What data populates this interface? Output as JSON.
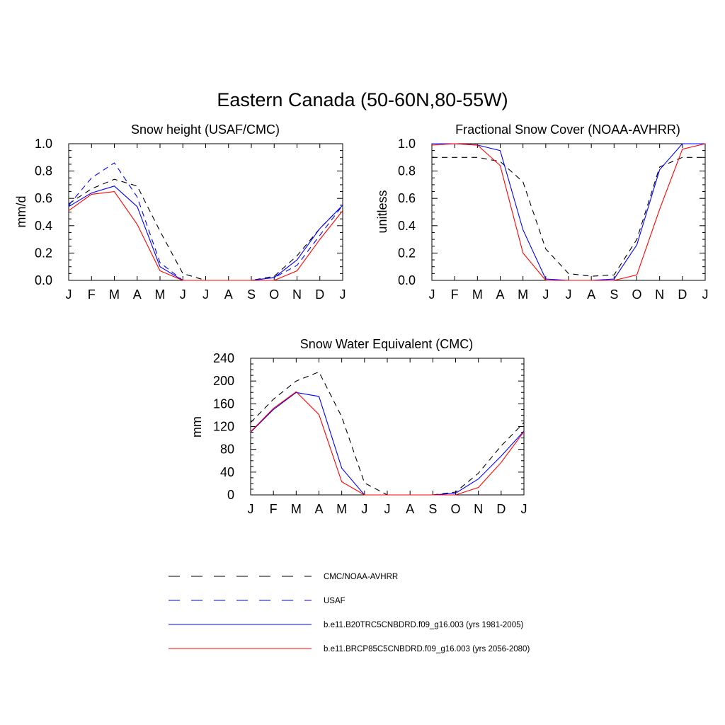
{
  "figure": {
    "title": "Eastern Canada (50-60N,80-55W)"
  },
  "legend": [
    {
      "label": "CMC/NOAA-AVHRR",
      "color": "#000000",
      "dash": true
    },
    {
      "label": "USAF",
      "color": "#0000ff",
      "dash": true
    },
    {
      "label": "b.e11.B20TRC5CNBDRD.f09_g16.003 (yrs 1981-2005)",
      "color": "#0000ff",
      "dash": false
    },
    {
      "label": "b.e11.BRCP85C5CNBDRD.f09_g16.003 (yrs 2056-2080)",
      "color": "#ff0000",
      "dash": false
    }
  ],
  "chart_data": [
    {
      "type": "line",
      "title": "Snow height (USAF/CMC)",
      "xlabel": "",
      "ylabel": "mm/d",
      "categories": [
        "J",
        "F",
        "M",
        "A",
        "M",
        "J",
        "J",
        "A",
        "S",
        "O",
        "N",
        "D",
        "J"
      ],
      "ylim": [
        0,
        1.0
      ],
      "yticks": [
        "0.0",
        "0.2",
        "0.4",
        "0.6",
        "0.8",
        "1.0"
      ],
      "series": [
        {
          "name": "CMC/NOAA-AVHRR",
          "color": "#000000",
          "dash": true,
          "values": [
            0.56,
            0.67,
            0.74,
            0.69,
            0.36,
            0.05,
            0.0,
            0.0,
            0.0,
            0.03,
            0.18,
            0.38,
            0.55
          ]
        },
        {
          "name": "USAF",
          "color": "#0000ff",
          "dash": true,
          "values": [
            0.55,
            0.75,
            0.86,
            0.61,
            0.13,
            0.0,
            0.0,
            0.0,
            0.0,
            0.02,
            0.11,
            0.33,
            0.55
          ]
        },
        {
          "name": "b.e11.B20TRC5CNBDRD.f09_g16.003 (yrs 1981-2005)",
          "color": "#0000ff",
          "dash": false,
          "values": [
            0.54,
            0.64,
            0.69,
            0.54,
            0.1,
            0.0,
            0.0,
            0.0,
            0.0,
            0.02,
            0.15,
            0.38,
            0.55
          ]
        },
        {
          "name": "b.e11.BRCP85C5CNBDRD.f09_g16.003 (yrs 2056-2080)",
          "color": "#ff0000",
          "dash": false,
          "values": [
            0.51,
            0.63,
            0.65,
            0.41,
            0.07,
            0.0,
            0.0,
            0.0,
            0.0,
            0.0,
            0.07,
            0.3,
            0.51
          ]
        }
      ]
    },
    {
      "type": "line",
      "title": "Fractional Snow Cover (NOAA-AVHRR)",
      "xlabel": "",
      "ylabel": "unitless",
      "categories": [
        "J",
        "F",
        "M",
        "A",
        "M",
        "J",
        "J",
        "A",
        "S",
        "O",
        "N",
        "D",
        "J"
      ],
      "ylim": [
        0,
        1.0
      ],
      "yticks": [
        "0.0",
        "0.2",
        "0.4",
        "0.6",
        "0.8",
        "1.0"
      ],
      "series": [
        {
          "name": "CMC/NOAA-AVHRR",
          "color": "#000000",
          "dash": true,
          "values": [
            0.9,
            0.9,
            0.9,
            0.87,
            0.72,
            0.23,
            0.05,
            0.03,
            0.04,
            0.3,
            0.83,
            0.9,
            0.9
          ]
        },
        {
          "name": "b.e11.B20TRC5CNBDRD.f09_g16.003 (yrs 1981-2005)",
          "color": "#0000ff",
          "dash": false,
          "values": [
            1.0,
            1.0,
            0.99,
            0.95,
            0.37,
            0.01,
            0.0,
            0.0,
            0.01,
            0.26,
            0.81,
            1.0,
            1.0
          ]
        },
        {
          "name": "b.e11.BRCP85C5CNBDRD.f09_g16.003 (yrs 2056-2080)",
          "color": "#ff0000",
          "dash": false,
          "values": [
            0.99,
            1.0,
            0.99,
            0.84,
            0.2,
            0.0,
            0.0,
            0.0,
            0.0,
            0.04,
            0.52,
            0.96,
            1.0
          ]
        }
      ]
    },
    {
      "type": "line",
      "title": "Snow Water Equivalent (CMC)",
      "xlabel": "",
      "ylabel": "mm",
      "categories": [
        "J",
        "F",
        "M",
        "A",
        "M",
        "J",
        "J",
        "A",
        "S",
        "O",
        "N",
        "D",
        "J"
      ],
      "ylim": [
        0,
        240
      ],
      "yticks": [
        "0",
        "40",
        "80",
        "120",
        "160",
        "200",
        "240"
      ],
      "series": [
        {
          "name": "CMC/NOAA-AVHRR",
          "color": "#000000",
          "dash": true,
          "values": [
            127,
            168,
            200,
            216,
            137,
            21,
            0,
            0,
            0,
            5,
            38,
            86,
            127
          ]
        },
        {
          "name": "b.e11.B20TRC5CNBDRD.f09_g16.003 (yrs 1981-2005)",
          "color": "#0000ff",
          "dash": false,
          "values": [
            110,
            150,
            180,
            173,
            47,
            0,
            0,
            0,
            0,
            3,
            28,
            68,
            112
          ]
        },
        {
          "name": "b.e11.BRCP85C5CNBDRD.f09_g16.003 (yrs 2056-2080)",
          "color": "#ff0000",
          "dash": false,
          "values": [
            111,
            152,
            181,
            141,
            23,
            0,
            0,
            0,
            0,
            0,
            13,
            57,
            111
          ]
        }
      ]
    }
  ]
}
